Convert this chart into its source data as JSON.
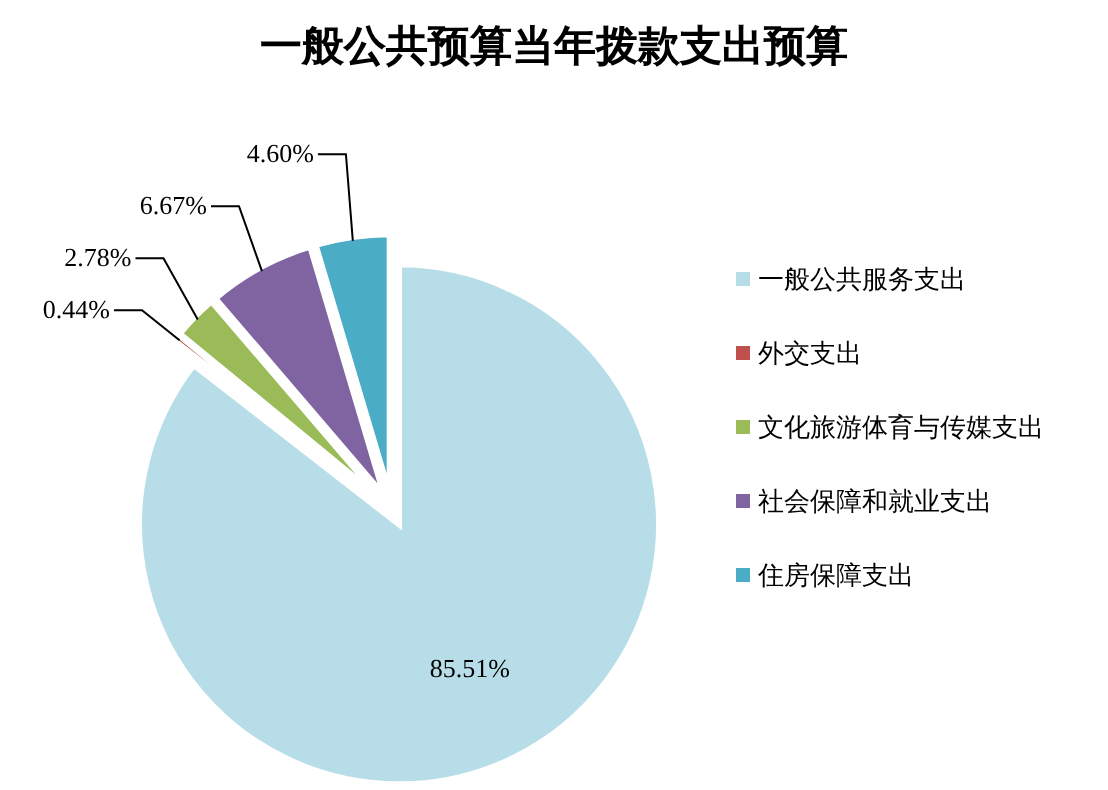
{
  "chart_data": {
    "type": "pie",
    "title": "一般公共预算当年拨款支出预算",
    "categories": [
      "一般公共服务支出",
      "外交支出",
      "文化旅游体育与传媒支出",
      "社会保障和就业支出",
      "住房保障支出"
    ],
    "values": [
      85.51,
      0.44,
      2.78,
      6.67,
      4.6
    ],
    "value_labels": [
      "85.51%",
      "0.44%",
      "2.78%",
      "6.67%",
      "4.60%"
    ],
    "colors": [
      "#b7dde8",
      "#c0504d",
      "#9bbb59",
      "#8064a2",
      "#4bacc6"
    ],
    "legend": "right"
  }
}
